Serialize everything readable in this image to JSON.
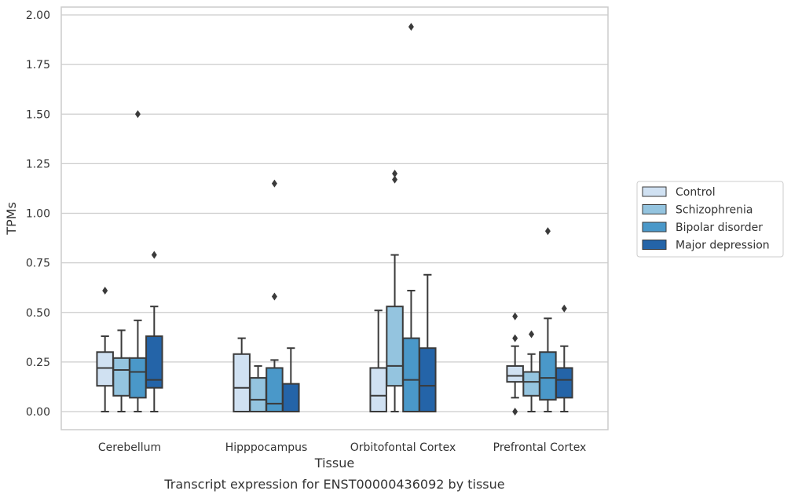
{
  "chart_data": {
    "type": "box",
    "categories": [
      "Cerebellum",
      "Hipppocampus",
      "Orbitofontal Cortex",
      "Prefrontal Cortex"
    ],
    "xlabel": "Tissue",
    "ylabel": "TPMs",
    "caption": "Transcript expression for ENST00000436092 by tissue",
    "ylim": [
      -0.1,
      2.04
    ],
    "yticks": [
      0.0,
      0.25,
      0.5,
      0.75,
      1.0,
      1.25,
      1.5,
      1.75,
      2.0
    ],
    "ytick_labels": [
      "0.00",
      "0.25",
      "0.50",
      "0.75",
      "1.00",
      "1.25",
      "1.50",
      "1.75",
      "2.00"
    ],
    "grid": "horizontal",
    "legend_position": "right",
    "series": [
      {
        "name": "Control",
        "color": "#d0e1f2",
        "boxes": [
          {
            "whislo": 0.0,
            "q1": 0.13,
            "med": 0.22,
            "q3": 0.3,
            "whishi": 0.38,
            "fliers": [
              0.61
            ]
          },
          {
            "whislo": 0.0,
            "q1": 0.0,
            "med": 0.12,
            "q3": 0.29,
            "whishi": 0.37,
            "fliers": []
          },
          {
            "whislo": 0.0,
            "q1": 0.0,
            "med": 0.08,
            "q3": 0.22,
            "whishi": 0.51,
            "fliers": []
          },
          {
            "whislo": 0.07,
            "q1": 0.15,
            "med": 0.18,
            "q3": 0.23,
            "whishi": 0.33,
            "fliers": [
              0.48,
              0.37,
              0.0
            ]
          }
        ]
      },
      {
        "name": "Schizophrenia",
        "color": "#94c4df",
        "boxes": [
          {
            "whislo": 0.0,
            "q1": 0.08,
            "med": 0.21,
            "q3": 0.27,
            "whishi": 0.41,
            "fliers": []
          },
          {
            "whislo": 0.0,
            "q1": 0.0,
            "med": 0.06,
            "q3": 0.17,
            "whishi": 0.23,
            "fliers": []
          },
          {
            "whislo": 0.0,
            "q1": 0.13,
            "med": 0.23,
            "q3": 0.53,
            "whishi": 0.79,
            "fliers": [
              1.2,
              1.17
            ]
          },
          {
            "whislo": 0.0,
            "q1": 0.08,
            "med": 0.15,
            "q3": 0.2,
            "whishi": 0.29,
            "fliers": [
              0.39
            ]
          }
        ]
      },
      {
        "name": "Bipolar disorder",
        "color": "#4a98c9",
        "boxes": [
          {
            "whislo": 0.0,
            "q1": 0.07,
            "med": 0.2,
            "q3": 0.27,
            "whishi": 0.46,
            "fliers": [
              1.5
            ]
          },
          {
            "whislo": 0.0,
            "q1": 0.0,
            "med": 0.04,
            "q3": 0.22,
            "whishi": 0.26,
            "fliers": [
              1.15,
              0.58
            ]
          },
          {
            "whislo": 0.0,
            "q1": 0.0,
            "med": 0.16,
            "q3": 0.37,
            "whishi": 0.61,
            "fliers": [
              1.94
            ]
          },
          {
            "whislo": 0.0,
            "q1": 0.06,
            "med": 0.17,
            "q3": 0.3,
            "whishi": 0.47,
            "fliers": [
              0.91
            ]
          }
        ]
      },
      {
        "name": "Major depression",
        "color": "#2464a8",
        "boxes": [
          {
            "whislo": 0.0,
            "q1": 0.12,
            "med": 0.16,
            "q3": 0.38,
            "whishi": 0.53,
            "fliers": [
              0.79
            ]
          },
          {
            "whislo": 0.0,
            "q1": 0.0,
            "med": 0.0,
            "q3": 0.14,
            "whishi": 0.32,
            "fliers": []
          },
          {
            "whislo": 0.0,
            "q1": 0.0,
            "med": 0.13,
            "q3": 0.32,
            "whishi": 0.69,
            "fliers": []
          },
          {
            "whislo": 0.0,
            "q1": 0.07,
            "med": 0.16,
            "q3": 0.22,
            "whishi": 0.33,
            "fliers": [
              0.52
            ]
          }
        ]
      }
    ]
  }
}
